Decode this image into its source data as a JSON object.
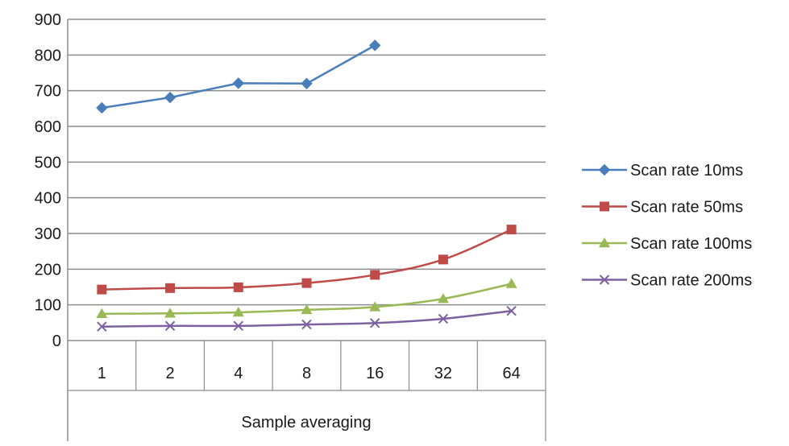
{
  "chart_data": {
    "type": "line",
    "title": "",
    "xlabel": "Sample averaging",
    "ylabel": "",
    "categories": [
      "1",
      "2",
      "4",
      "8",
      "16",
      "32",
      "64"
    ],
    "ylim": [
      0,
      900
    ],
    "yticks": [
      0,
      100,
      200,
      300,
      400,
      500,
      600,
      700,
      800,
      900
    ],
    "grid": "horizontal",
    "legend_position": "right",
    "series": [
      {
        "name": "Scan rate 10ms",
        "color": "#4a7ebb",
        "marker": "diamond",
        "values": [
          652,
          681,
          721,
          720,
          827,
          null,
          null
        ]
      },
      {
        "name": "Scan rate 50ms",
        "color": "#be4b48",
        "marker": "square",
        "values": [
          143,
          147,
          149,
          161,
          184,
          227,
          311
        ]
      },
      {
        "name": "Scan rate 100ms",
        "color": "#98b954",
        "marker": "triangle",
        "values": [
          75,
          76,
          79,
          86,
          94,
          117,
          159
        ]
      },
      {
        "name": "Scan rate 200ms",
        "color": "#7d60a0",
        "marker": "x",
        "values": [
          39,
          41,
          41,
          45,
          49,
          61,
          83
        ]
      }
    ]
  }
}
